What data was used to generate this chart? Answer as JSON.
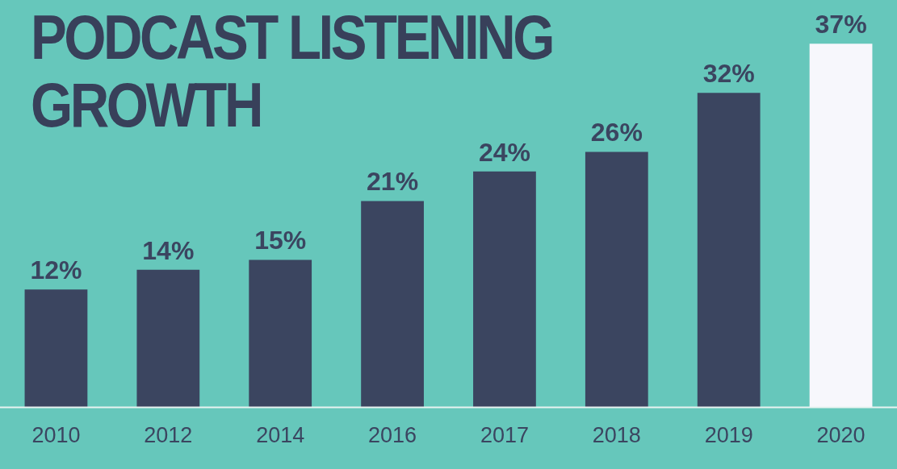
{
  "chart_data": {
    "type": "bar",
    "title": "PODCAST LISTENING GROWTH",
    "categories": [
      "2010",
      "2012",
      "2014",
      "2016",
      "2017",
      "2018",
      "2019",
      "2020"
    ],
    "values": [
      12,
      14,
      15,
      21,
      24,
      26,
      32,
      37
    ],
    "colors": [
      "#3b4560",
      "#3b4560",
      "#3b4560",
      "#3b4560",
      "#3b4560",
      "#3b4560",
      "#3b4560",
      "#f7f7fc"
    ],
    "value_labels": [
      "12%",
      "14%",
      "15%",
      "21%",
      "24%",
      "26%",
      "32%",
      "37%"
    ],
    "tick_labels": "x",
    "grid": false,
    "legend": false
  }
}
